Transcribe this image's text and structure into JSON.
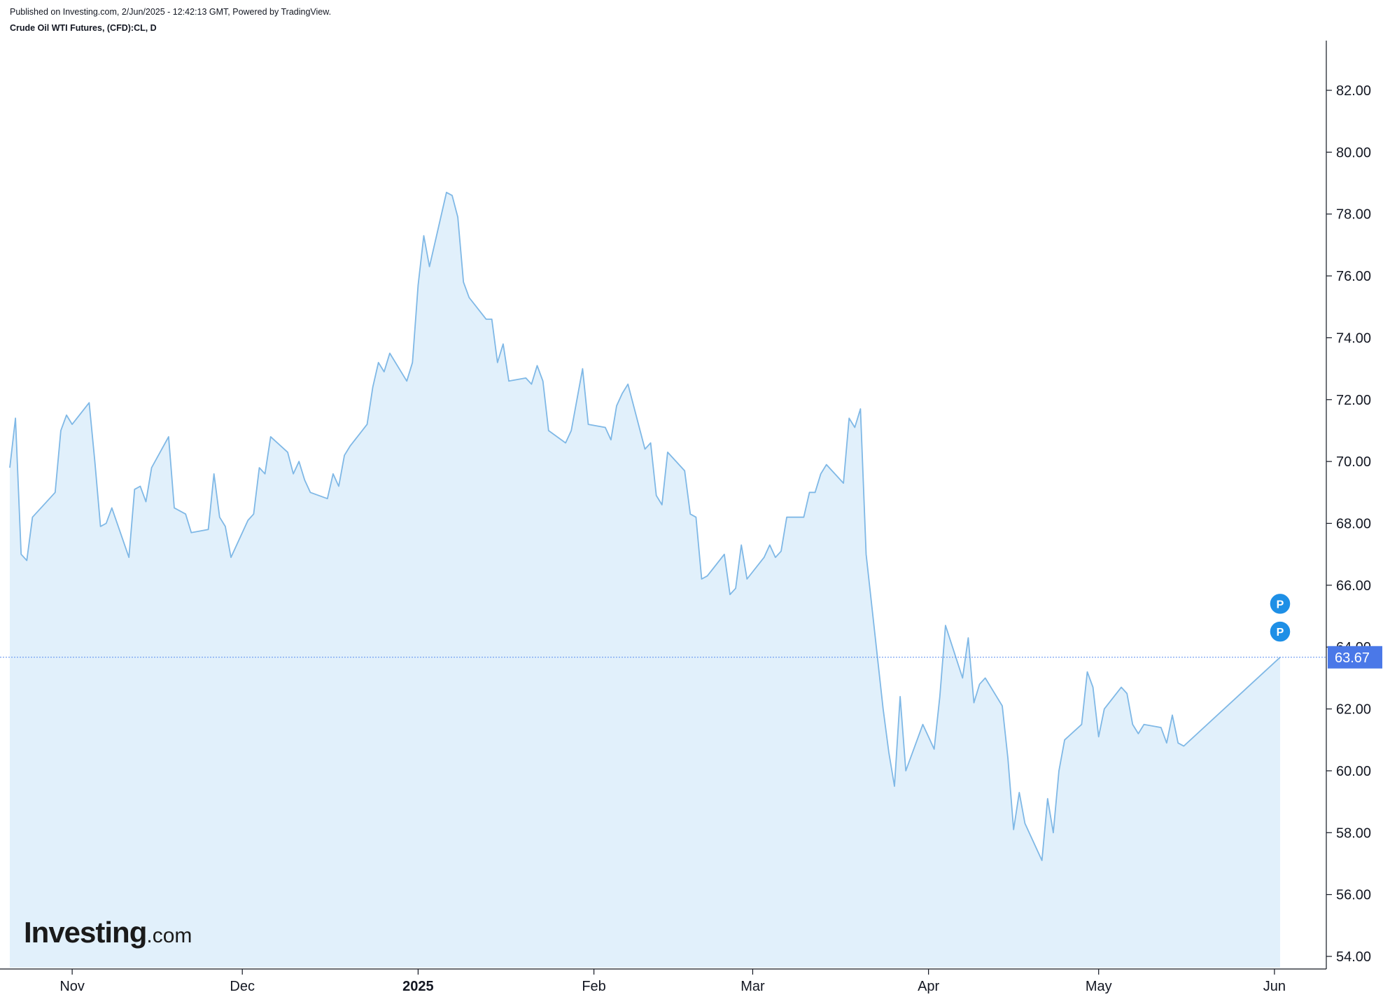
{
  "header": {
    "published": "Published on Investing.com, 2/Jun/2025 - 12:42:13 GMT, Powered by TradingView.",
    "symbol": "Crude Oil WTI Futures, (CFD):CL, D"
  },
  "logo": {
    "main": "Investing",
    "suffix": ".com"
  },
  "colors": {
    "line": "#7fb8e6",
    "fill": "#e1f0fb",
    "axis": "#131722",
    "price_label_bg": "#4a78e8",
    "marker": "#1e8fe6"
  },
  "chart_data": {
    "type": "area",
    "title": "Crude Oil WTI Futures, (CFD):CL, D",
    "ylim": [
      53.5,
      84.1
    ],
    "y_ticks": [
      54,
      56,
      58,
      60,
      62,
      64,
      66,
      68,
      70,
      72,
      74,
      76,
      78,
      80,
      82
    ],
    "y_tick_labels": [
      "54.00",
      "56.00",
      "58.00",
      "60.00",
      "62.00",
      "64.00",
      "66.00",
      "68.00",
      "70.00",
      "72.00",
      "74.00",
      "76.00",
      "78.00",
      "80.00",
      "82.00"
    ],
    "x_start": "2024-10-21",
    "x_end": "2025-06-02",
    "x_ticks": [
      {
        "label": "Nov",
        "date": "2024-11-01",
        "bold": false
      },
      {
        "label": "Dec",
        "date": "2024-12-01",
        "bold": false
      },
      {
        "label": "2025",
        "date": "2025-01-01",
        "bold": true
      },
      {
        "label": "Feb",
        "date": "2025-02-01",
        "bold": false
      },
      {
        "label": "Mar",
        "date": "2025-03-01",
        "bold": false
      },
      {
        "label": "Apr",
        "date": "2025-04-01",
        "bold": false
      },
      {
        "label": "May",
        "date": "2025-05-01",
        "bold": false
      },
      {
        "label": "Jun",
        "date": "2025-06-01",
        "bold": false
      }
    ],
    "last_price": 63.67,
    "last_price_label": "63.67",
    "markers": [
      {
        "label": "P",
        "value": 65.4
      },
      {
        "label": "P",
        "value": 64.5
      }
    ],
    "series": [
      {
        "points": [
          [
            "2024-10-21",
            69.8
          ],
          [
            "2024-10-22",
            71.4
          ],
          [
            "2024-10-23",
            67.0
          ],
          [
            "2024-10-24",
            66.8
          ],
          [
            "2024-10-25",
            68.2
          ],
          [
            "2024-10-28",
            68.8
          ],
          [
            "2024-10-29",
            69.0
          ],
          [
            "2024-10-30",
            71.0
          ],
          [
            "2024-10-31",
            71.5
          ],
          [
            "2024-11-01",
            71.2
          ],
          [
            "2024-11-04",
            71.9
          ],
          [
            "2024-11-05",
            70.0
          ],
          [
            "2024-11-06",
            67.9
          ],
          [
            "2024-11-07",
            68.0
          ],
          [
            "2024-11-08",
            68.5
          ],
          [
            "2024-11-11",
            66.9
          ],
          [
            "2024-11-12",
            69.1
          ],
          [
            "2024-11-13",
            69.2
          ],
          [
            "2024-11-14",
            68.7
          ],
          [
            "2024-11-15",
            69.8
          ],
          [
            "2024-11-18",
            70.8
          ],
          [
            "2024-11-19",
            68.5
          ],
          [
            "2024-11-20",
            68.4
          ],
          [
            "2024-11-21",
            68.3
          ],
          [
            "2024-11-22",
            67.7
          ],
          [
            "2024-11-25",
            67.8
          ],
          [
            "2024-11-26",
            69.6
          ],
          [
            "2024-11-27",
            68.2
          ],
          [
            "2024-11-28",
            67.9
          ],
          [
            "2024-11-29",
            66.9
          ],
          [
            "2024-12-02",
            68.1
          ],
          [
            "2024-12-03",
            68.3
          ],
          [
            "2024-12-04",
            69.8
          ],
          [
            "2024-12-05",
            69.6
          ],
          [
            "2024-12-06",
            70.8
          ],
          [
            "2024-12-09",
            70.3
          ],
          [
            "2024-12-10",
            69.6
          ],
          [
            "2024-12-11",
            70.0
          ],
          [
            "2024-12-12",
            69.4
          ],
          [
            "2024-12-13",
            69.0
          ],
          [
            "2024-12-16",
            68.8
          ],
          [
            "2024-12-17",
            69.6
          ],
          [
            "2024-12-18",
            69.2
          ],
          [
            "2024-12-19",
            70.2
          ],
          [
            "2024-12-20",
            70.5
          ],
          [
            "2024-12-23",
            71.2
          ],
          [
            "2024-12-24",
            72.4
          ],
          [
            "2024-12-25",
            73.2
          ],
          [
            "2024-12-26",
            72.9
          ],
          [
            "2024-12-27",
            73.5
          ],
          [
            "2024-12-30",
            72.6
          ],
          [
            "2024-12-31",
            73.2
          ],
          [
            "2025-01-01",
            75.7
          ],
          [
            "2025-01-02",
            77.3
          ],
          [
            "2025-01-03",
            76.3
          ],
          [
            "2025-01-06",
            78.7
          ],
          [
            "2025-01-07",
            78.6
          ],
          [
            "2025-01-08",
            77.9
          ],
          [
            "2025-01-09",
            75.8
          ],
          [
            "2025-01-10",
            75.3
          ],
          [
            "2025-01-13",
            74.6
          ],
          [
            "2025-01-14",
            74.6
          ],
          [
            "2025-01-15",
            73.2
          ],
          [
            "2025-01-16",
            73.8
          ],
          [
            "2025-01-17",
            72.6
          ],
          [
            "2025-01-20",
            72.7
          ],
          [
            "2025-01-21",
            72.5
          ],
          [
            "2025-01-22",
            73.1
          ],
          [
            "2025-01-23",
            72.6
          ],
          [
            "2025-01-24",
            71.0
          ],
          [
            "2025-01-27",
            70.6
          ],
          [
            "2025-01-28",
            71.0
          ],
          [
            "2025-01-29",
            72.0
          ],
          [
            "2025-01-30",
            73.0
          ],
          [
            "2025-01-31",
            71.2
          ],
          [
            "2025-02-03",
            71.1
          ],
          [
            "2025-02-04",
            70.7
          ],
          [
            "2025-02-05",
            71.8
          ],
          [
            "2025-02-06",
            72.2
          ],
          [
            "2025-02-07",
            72.5
          ],
          [
            "2025-02-10",
            70.4
          ],
          [
            "2025-02-11",
            70.6
          ],
          [
            "2025-02-12",
            68.9
          ],
          [
            "2025-02-13",
            68.6
          ],
          [
            "2025-02-14",
            70.3
          ],
          [
            "2025-02-17",
            69.7
          ],
          [
            "2025-02-18",
            68.3
          ],
          [
            "2025-02-19",
            68.2
          ],
          [
            "2025-02-20",
            66.2
          ],
          [
            "2025-02-21",
            66.3
          ],
          [
            "2025-02-24",
            67.0
          ],
          [
            "2025-02-25",
            65.7
          ],
          [
            "2025-02-26",
            65.9
          ],
          [
            "2025-02-27",
            67.3
          ],
          [
            "2025-02-28",
            66.2
          ],
          [
            "2025-03-03",
            66.9
          ],
          [
            "2025-03-04",
            67.3
          ],
          [
            "2025-03-05",
            66.9
          ],
          [
            "2025-03-06",
            67.1
          ],
          [
            "2025-03-07",
            68.2
          ],
          [
            "2025-03-10",
            68.2
          ],
          [
            "2025-03-11",
            69.0
          ],
          [
            "2025-03-12",
            69.0
          ],
          [
            "2025-03-13",
            69.6
          ],
          [
            "2025-03-14",
            69.9
          ],
          [
            "2025-03-17",
            69.3
          ],
          [
            "2025-03-18",
            71.4
          ],
          [
            "2025-03-19",
            71.1
          ],
          [
            "2025-03-20",
            71.7
          ],
          [
            "2025-03-21",
            67.0
          ],
          [
            "2025-03-24",
            62.0
          ],
          [
            "2025-03-25",
            60.6
          ],
          [
            "2025-03-26",
            59.5
          ],
          [
            "2025-03-27",
            62.4
          ],
          [
            "2025-03-28",
            60.0
          ],
          [
            "2025-03-31",
            61.5
          ],
          [
            "2025-04-01",
            61.1
          ],
          [
            "2025-04-02",
            60.7
          ],
          [
            "2025-04-03",
            62.4
          ],
          [
            "2025-04-04",
            64.7
          ],
          [
            "2025-04-07",
            63.0
          ],
          [
            "2025-04-08",
            64.3
          ],
          [
            "2025-04-09",
            62.2
          ],
          [
            "2025-04-10",
            62.8
          ],
          [
            "2025-04-11",
            63.0
          ],
          [
            "2025-04-14",
            62.1
          ],
          [
            "2025-04-15",
            60.4
          ],
          [
            "2025-04-16",
            58.1
          ],
          [
            "2025-04-17",
            59.3
          ],
          [
            "2025-04-18",
            58.3
          ],
          [
            "2025-04-21",
            57.1
          ],
          [
            "2025-04-22",
            59.1
          ],
          [
            "2025-04-23",
            58.0
          ],
          [
            "2025-04-24",
            60.0
          ],
          [
            "2025-04-25",
            61.0
          ],
          [
            "2025-04-28",
            61.5
          ],
          [
            "2025-04-29",
            63.2
          ],
          [
            "2025-04-30",
            62.7
          ],
          [
            "2025-05-01",
            61.1
          ],
          [
            "2025-05-02",
            62.0
          ],
          [
            "2025-05-05",
            62.7
          ],
          [
            "2025-05-06",
            62.5
          ],
          [
            "2025-05-07",
            61.5
          ],
          [
            "2025-05-08",
            61.2
          ],
          [
            "2025-05-09",
            61.5
          ],
          [
            "2025-05-12",
            61.4
          ],
          [
            "2025-05-13",
            60.9
          ],
          [
            "2025-05-14",
            61.8
          ],
          [
            "2025-05-15",
            60.9
          ],
          [
            "2025-05-16",
            60.8
          ],
          [
            "2025-06-02",
            63.67
          ]
        ]
      }
    ]
  }
}
